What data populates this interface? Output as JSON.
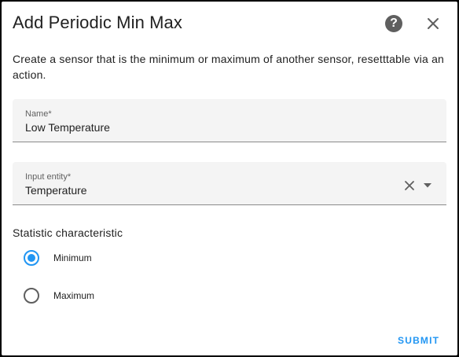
{
  "dialog": {
    "title": "Add Periodic Min Max",
    "help_glyph": "?",
    "description": "Create a sensor that is the minimum or maximum of another sensor, resetttable via an action."
  },
  "fields": {
    "name": {
      "label": "Name*",
      "value": "Low Temperature"
    },
    "input_entity": {
      "label": "Input entity*",
      "value": "Temperature"
    }
  },
  "statistic": {
    "label": "Statistic characteristic",
    "options": [
      {
        "label": "Minimum",
        "selected": true
      },
      {
        "label": "Maximum",
        "selected": false
      }
    ]
  },
  "actions": {
    "submit_label": "SUBMIT"
  },
  "colors": {
    "accent": "#2196f3",
    "field_bg": "#f4f4f4",
    "text": "#212121"
  },
  "icons": {
    "help": "help-circle-icon",
    "close": "close-icon",
    "clear": "clear-icon",
    "dropdown": "chevron-down-icon"
  }
}
